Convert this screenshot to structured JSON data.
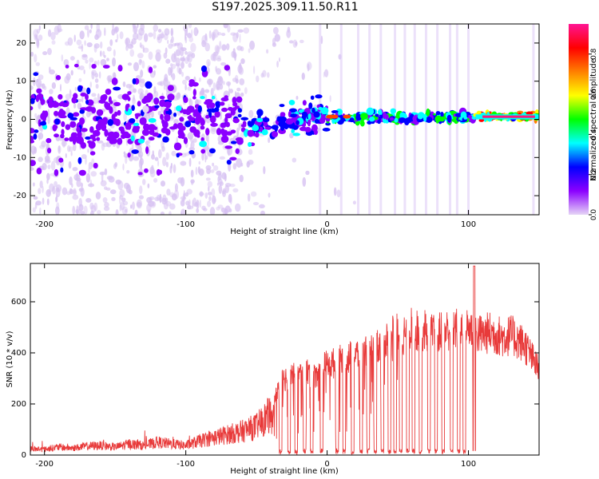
{
  "title": "S197.2025.309.11.50.R11",
  "colors": {
    "snr_line": "#e83a3a",
    "colorbar": [
      "#e6d6f6",
      "#8b00ff",
      "#0000ff",
      "#00ffff",
      "#00ff00",
      "#ffff00",
      "#ff7f00",
      "#ff0000",
      "#ff1493"
    ]
  },
  "chart_data": [
    {
      "type": "heatmap",
      "title": "S197.2025.309.11.50.R11",
      "xlabel": "Height of straight line (km)",
      "ylabel": "Frequency (Hz)",
      "xlim": [
        -210,
        150
      ],
      "ylim": [
        -25,
        25
      ],
      "xticks": [
        -200,
        -100,
        0,
        100
      ],
      "yticks": [
        -20,
        -10,
        0,
        10,
        20
      ],
      "colorbar": {
        "label": "Normalized spectral amplitude",
        "range": [
          0,
          0.95
        ],
        "ticks": [
          "0.0",
          "0.2",
          "0.4",
          "0.6",
          "0.8"
        ]
      },
      "features": [
        {
          "x_range": [
            -210,
            -60
          ],
          "freq_center": 0,
          "freq_spread": 12,
          "amplitude": 0.3,
          "note": "diffuse scatter"
        },
        {
          "x_range": [
            -60,
            0
          ],
          "freq_center": -3,
          "freq_spread": 4,
          "amplitude": 0.35,
          "note": "rising trace"
        },
        {
          "x_range": [
            0,
            105
          ],
          "freq_center": 0.5,
          "freq_spread": 1.5,
          "amplitude": 0.45,
          "note": "segmented line"
        },
        {
          "x_range": [
            105,
            150
          ],
          "freq_center": 0.7,
          "freq_spread": 1,
          "amplitude": 0.9,
          "note": "strong continuous line"
        }
      ]
    },
    {
      "type": "line",
      "xlabel": "Height of straight line (km)",
      "ylabel": "SNR (10 * v/v)",
      "xlim": [
        -210,
        150
      ],
      "ylim": [
        0,
        750
      ],
      "xticks": [
        -200,
        -100,
        0,
        100
      ],
      "yticks": [
        0,
        200,
        400,
        600
      ],
      "x": [
        -210,
        -200,
        -190,
        -180,
        -170,
        -160,
        -150,
        -140,
        -130,
        -120,
        -110,
        -100,
        -90,
        -80,
        -70,
        -60,
        -50,
        -40,
        -35,
        -30,
        -25,
        -20,
        -15,
        -10,
        -5,
        0,
        5,
        10,
        15,
        20,
        25,
        30,
        35,
        40,
        45,
        50,
        55,
        60,
        65,
        70,
        75,
        80,
        85,
        90,
        95,
        100,
        105,
        110,
        115,
        120,
        125,
        130,
        135,
        140,
        145,
        150
      ],
      "values": [
        20,
        18,
        25,
        22,
        28,
        30,
        25,
        35,
        30,
        40,
        35,
        30,
        45,
        55,
        65,
        75,
        90,
        130,
        260,
        300,
        320,
        310,
        330,
        300,
        340,
        350,
        360,
        370,
        380,
        390,
        400,
        410,
        420,
        440,
        470,
        480,
        470,
        500,
        480,
        490,
        470,
        480,
        490,
        500,
        480,
        500,
        480,
        470,
        480,
        470,
        460,
        470,
        450,
        430,
        380,
        330
      ]
    }
  ]
}
